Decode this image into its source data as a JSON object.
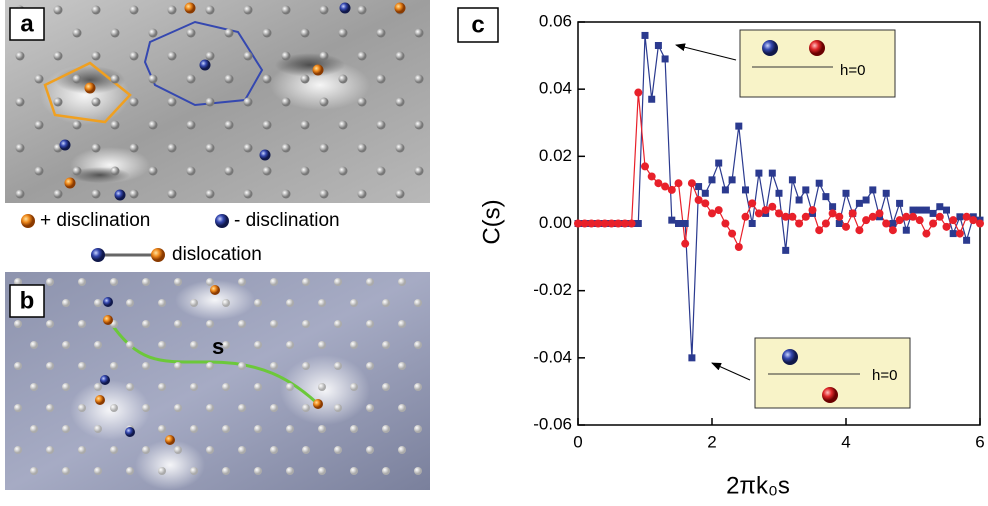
{
  "panels": {
    "a": {
      "label": "a"
    },
    "b": {
      "label": "b",
      "path_label": "s"
    }
  },
  "legend": [
    "+ disclination",
    "- disclination",
    "dislocation"
  ],
  "chart_data": {
    "type": "line",
    "panel_label": "c",
    "x_label": "2πk₀s",
    "y_label": "C(s)",
    "x": [
      0,
      0.1,
      0.2,
      0.3,
      0.4,
      0.5,
      0.6,
      0.7,
      0.8,
      0.9,
      1,
      1.1,
      1.2,
      1.3,
      1.4,
      1.5,
      1.6,
      1.7,
      1.8,
      1.9,
      2,
      2.1,
      2.2,
      2.3,
      2.4,
      2.5,
      2.6,
      2.7,
      2.8,
      2.9,
      3,
      3.1,
      3.2,
      3.3,
      3.4,
      3.5,
      3.6,
      3.7,
      3.8,
      3.9,
      4,
      4.1,
      4.2,
      4.3,
      4.4,
      4.5,
      4.6,
      4.7,
      4.8,
      4.9,
      5,
      5.1,
      5.2,
      5.3,
      5.4,
      5.5,
      5.6,
      5.7,
      5.8,
      5.9,
      6
    ],
    "series": [
      {
        "color": "#2b3a8f",
        "marker": "square",
        "values": [
          0,
          0,
          0,
          0,
          0,
          0,
          0,
          0,
          0,
          0,
          0.056,
          0.037,
          0.053,
          0.049,
          0.001,
          0,
          0,
          -0.04,
          0.011,
          0.009,
          0.013,
          0.018,
          0.01,
          0.013,
          0.029,
          0.01,
          0,
          0.015,
          0.003,
          0.015,
          0.009,
          -0.008,
          0.013,
          0.007,
          0.01,
          0.003,
          0.012,
          0.008,
          0.005,
          0,
          0.009,
          0.003,
          0.006,
          0.007,
          0.01,
          0.002,
          0.009,
          0,
          0.006,
          -0.002,
          0.004,
          0.004,
          0.004,
          0.003,
          0.005,
          0.004,
          -0.003,
          0.002,
          -0.005,
          0.002,
          0.001
        ]
      },
      {
        "color": "#e8202a",
        "marker": "circle",
        "values": [
          0,
          0,
          0,
          0,
          0,
          0,
          0,
          0,
          0,
          0.039,
          0.017,
          0.014,
          0.012,
          0.011,
          0.01,
          0.012,
          -0.006,
          0.012,
          0.007,
          0.006,
          0.003,
          0.004,
          0,
          -0.003,
          -0.007,
          0.002,
          0.006,
          0.003,
          0.004,
          0.005,
          0.003,
          0.002,
          0.002,
          0,
          0.002,
          0.004,
          -0.002,
          0,
          0.003,
          0.002,
          -0.001,
          0.003,
          -0.002,
          0.001,
          0.002,
          0.003,
          0,
          -0.002,
          0.001,
          0.002,
          0.002,
          0.001,
          -0.003,
          0,
          0.002,
          -0.001,
          0.001,
          -0.003,
          0.002,
          0.001,
          0
        ]
      }
    ],
    "xlim": [
      0,
      6
    ],
    "xticks": [
      0,
      2,
      4,
      6
    ],
    "ylim": [
      -0.06,
      0.06
    ],
    "yticks": [
      -0.06,
      -0.04,
      -0.02,
      {
        "value": 0,
        "label": "0.00"
      },
      0.02,
      0.04,
      0.06
    ],
    "annotations": [
      "h=0",
      "h=0"
    ]
  }
}
